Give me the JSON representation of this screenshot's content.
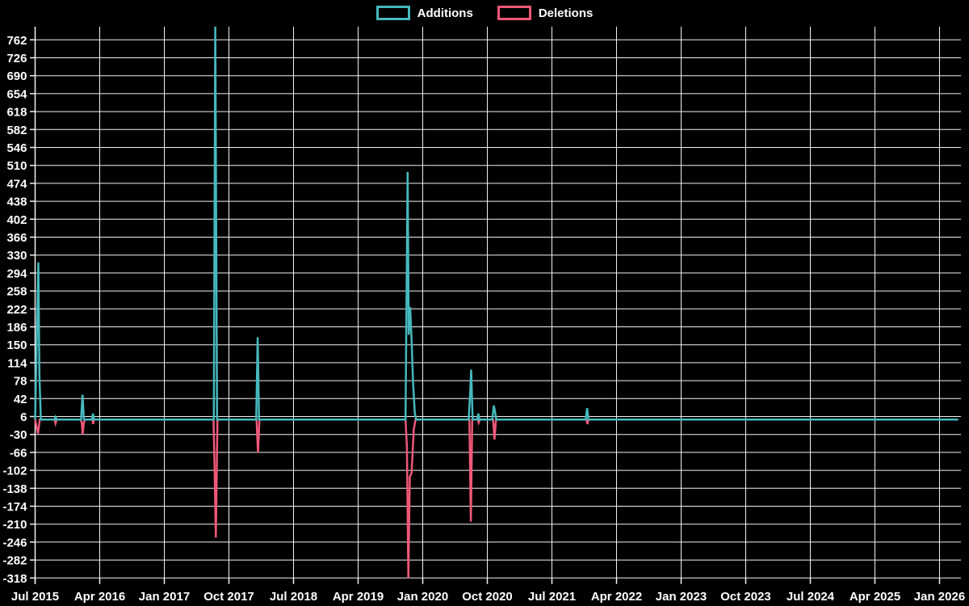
{
  "legend": {
    "additions_label": "Additions",
    "deletions_label": "Deletions"
  },
  "colors": {
    "background": "#000000",
    "grid": "#f2f2f2",
    "text": "#ffffff",
    "additions": "#45b9be",
    "deletions": "#ef5878"
  },
  "chart_data": {
    "type": "line",
    "title": "",
    "legend": [
      "Additions",
      "Deletions"
    ],
    "legend_position": "top-center",
    "grid": true,
    "x_tick_labels": [
      "Jul 2015",
      "Apr 2016",
      "Jan 2017",
      "Oct 2017",
      "Jul 2018",
      "Apr 2019",
      "Jan 2020",
      "Oct 2020",
      "Jul 2021",
      "Apr 2022",
      "Jan 2023",
      "Oct 2023",
      "Jul 2024",
      "Apr 2025",
      "Jan 2026"
    ],
    "x_tick_step_months": 9,
    "y_ticks": [
      762,
      726,
      690,
      654,
      618,
      582,
      546,
      510,
      474,
      438,
      402,
      366,
      330,
      294,
      258,
      222,
      186,
      150,
      114,
      78,
      42,
      6,
      -30,
      -66,
      -102,
      -138,
      -174,
      -210,
      -246,
      -282,
      -318
    ],
    "ylim": [
      -318,
      790
    ],
    "x_axis_note": "x values below are months elapsed since Jul 2015; weekly spikes return to 0 between events; the Aug 2017 additions spike is clipped at the top of the plot",
    "series": [
      {
        "name": "Additions",
        "color": "#45b9be",
        "points": [
          [
            0.0,
            0
          ],
          [
            0.45,
            315
          ],
          [
            0.6,
            88
          ],
          [
            0.8,
            0
          ],
          [
            2.7,
            0
          ],
          [
            2.85,
            5
          ],
          [
            3.0,
            0
          ],
          [
            6.4,
            0
          ],
          [
            6.6,
            50
          ],
          [
            6.8,
            0
          ],
          [
            7.9,
            0
          ],
          [
            8.05,
            12
          ],
          [
            8.2,
            0
          ],
          [
            24.9,
            0
          ],
          [
            25.1,
            795
          ],
          [
            25.35,
            0
          ],
          [
            30.8,
            0
          ],
          [
            31.0,
            165
          ],
          [
            31.2,
            0
          ],
          [
            51.6,
            0
          ],
          [
            51.9,
            497
          ],
          [
            52.05,
            170
          ],
          [
            52.25,
            226
          ],
          [
            52.45,
            160
          ],
          [
            52.65,
            75
          ],
          [
            52.9,
            12
          ],
          [
            53.1,
            0
          ],
          [
            60.4,
            0
          ],
          [
            60.6,
            51
          ],
          [
            60.75,
            100
          ],
          [
            60.95,
            0
          ],
          [
            61.6,
            0
          ],
          [
            61.75,
            12
          ],
          [
            61.9,
            0
          ],
          [
            63.7,
            0
          ],
          [
            63.9,
            28
          ],
          [
            64.05,
            18
          ],
          [
            64.25,
            0
          ],
          [
            76.7,
            0
          ],
          [
            76.9,
            23
          ],
          [
            77.1,
            0
          ],
          [
            128.6,
            0
          ]
        ]
      },
      {
        "name": "Deletions",
        "color": "#ef5878",
        "points": [
          [
            0.0,
            0
          ],
          [
            0.4,
            -28
          ],
          [
            0.65,
            0
          ],
          [
            2.7,
            0
          ],
          [
            2.85,
            -8
          ],
          [
            3.0,
            0
          ],
          [
            6.3,
            0
          ],
          [
            6.5,
            -6
          ],
          [
            6.62,
            -30
          ],
          [
            6.8,
            -6
          ],
          [
            6.95,
            0
          ],
          [
            8.0,
            0
          ],
          [
            8.08,
            -9
          ],
          [
            8.2,
            0
          ],
          [
            24.85,
            0
          ],
          [
            25.0,
            -94
          ],
          [
            25.18,
            -237
          ],
          [
            25.4,
            0
          ],
          [
            30.85,
            0
          ],
          [
            31.05,
            -66
          ],
          [
            31.25,
            0
          ],
          [
            51.6,
            0
          ],
          [
            51.8,
            -55
          ],
          [
            52.0,
            -318
          ],
          [
            52.2,
            -115
          ],
          [
            52.45,
            -107
          ],
          [
            52.75,
            -20
          ],
          [
            53.0,
            0
          ],
          [
            60.5,
            0
          ],
          [
            60.7,
            -205
          ],
          [
            60.9,
            0
          ],
          [
            61.7,
            0
          ],
          [
            61.8,
            -6
          ],
          [
            61.95,
            0
          ],
          [
            63.8,
            0
          ],
          [
            64.0,
            -40
          ],
          [
            64.2,
            0
          ],
          [
            76.8,
            0
          ],
          [
            76.95,
            -9
          ],
          [
            77.1,
            0
          ],
          [
            128.6,
            0
          ]
        ]
      }
    ]
  }
}
